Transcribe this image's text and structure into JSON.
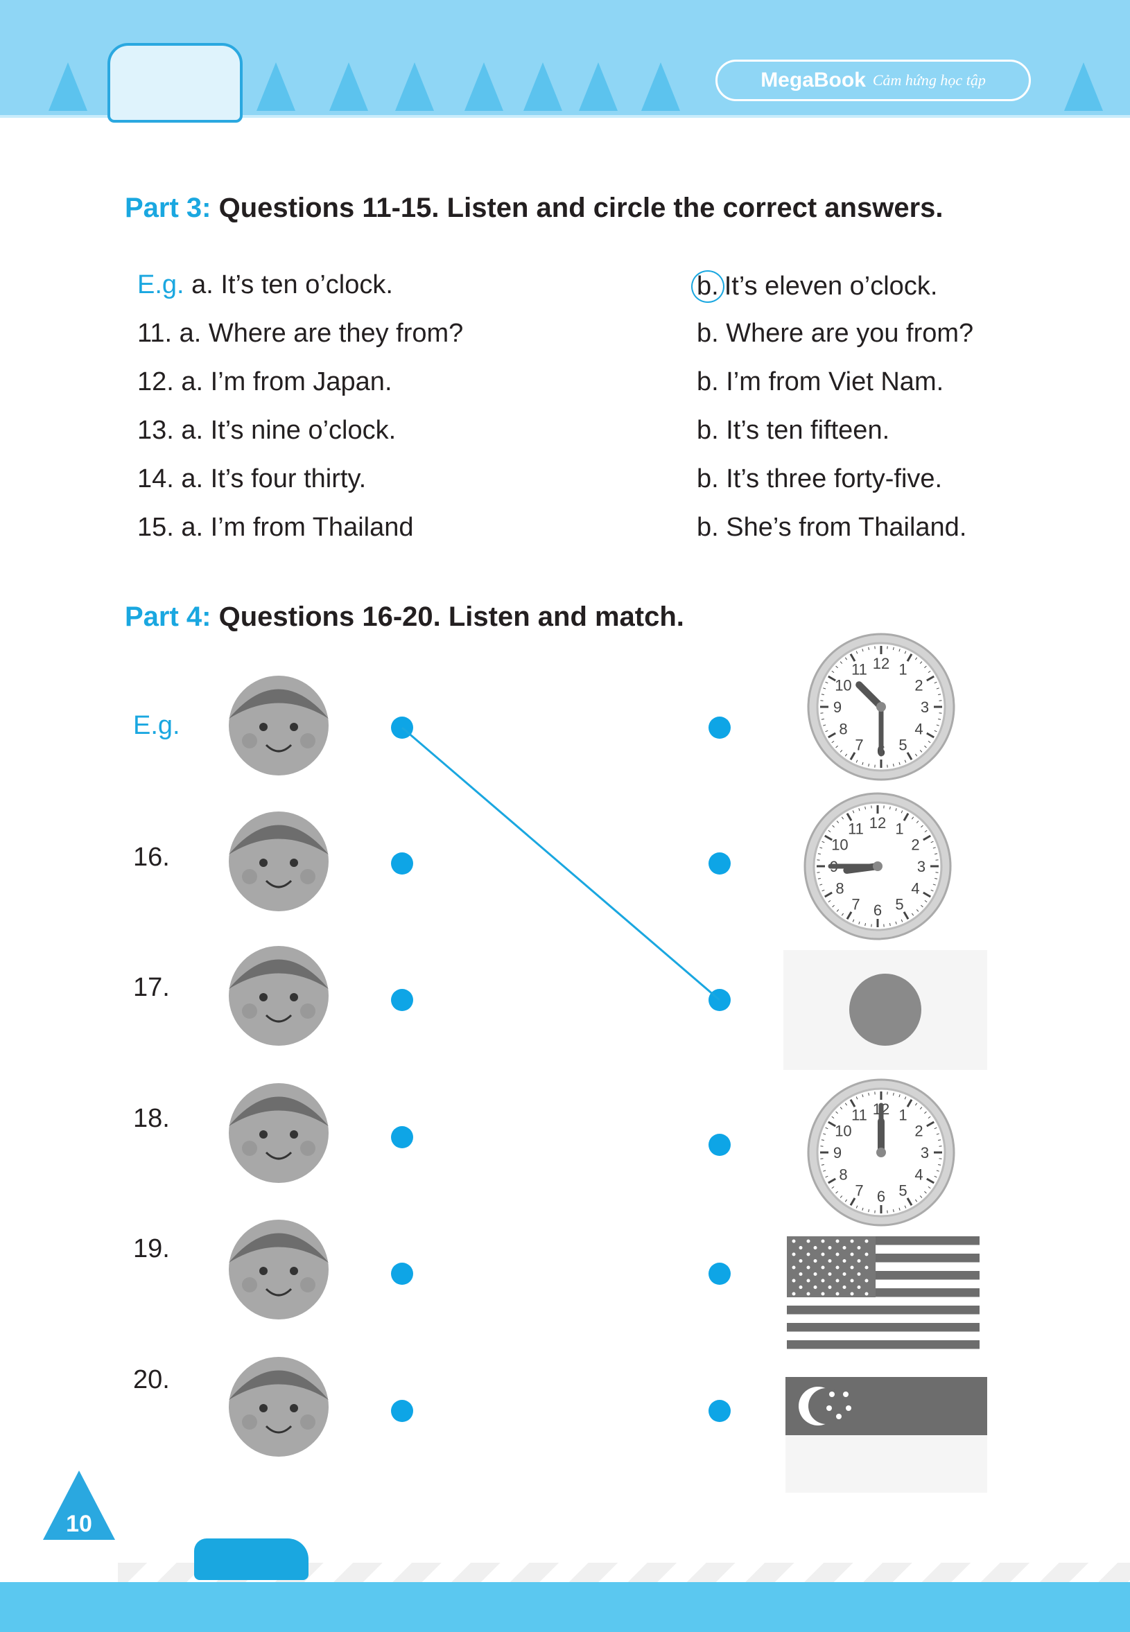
{
  "header": {
    "brand": "MegaBook",
    "tagline": "Cảm hứng học tập"
  },
  "part3": {
    "label": "Part 3:",
    "instruction": "Questions 11-15. Listen and circle the correct answers.",
    "rows": [
      {
        "num": "E.g.",
        "a": "a. It’s ten o’clock.",
        "b_letter": "b.",
        "b": "It’s eleven o’clock.",
        "circled": "b"
      },
      {
        "num": "11.",
        "a": "a. Where are they from?",
        "b": "b. Where are you from?"
      },
      {
        "num": "12.",
        "a": "a. I’m from Japan.",
        "b": "b. I’m from Viet Nam."
      },
      {
        "num": "13.",
        "a": "a. It’s nine o’clock.",
        "b": "b. It’s ten fifteen."
      },
      {
        "num": "14.",
        "a": "a. It’s four thirty.",
        "b": "b. It’s three forty-five."
      },
      {
        "num": "15.",
        "a": "a. I’m from Thailand",
        "b": "b. She’s from Thailand."
      }
    ]
  },
  "part4": {
    "label": "Part 4:",
    "instruction": "Questions 16-20. Listen and match.",
    "items": [
      "E.g.",
      "16.",
      "17.",
      "18.",
      "19.",
      "20."
    ],
    "right_pictures": [
      "clock-10:30",
      "clock-8:45",
      "flag-japan",
      "clock-12:00",
      "flag-usa",
      "flag-singapore"
    ],
    "example_match": {
      "from": "E.g.",
      "to": "flag-japan"
    }
  },
  "page_number": "10",
  "colors": {
    "accent": "#1aa7e0",
    "header": "#8fd6f5",
    "footer": "#5bc8f0"
  }
}
